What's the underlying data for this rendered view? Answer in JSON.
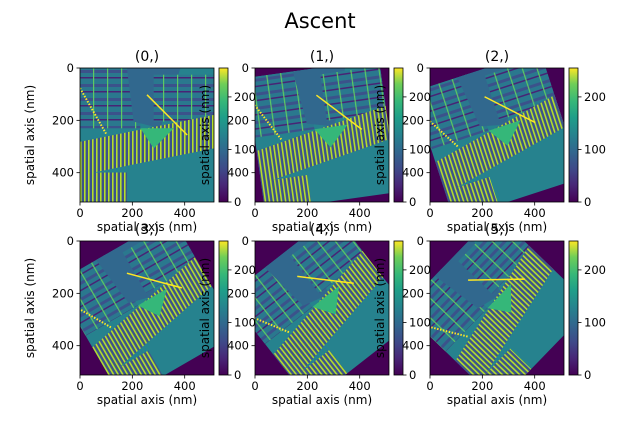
{
  "figure": {
    "suptitle": "Ascent"
  },
  "chart_data": {
    "type": "heatmap",
    "colormap": "viridis",
    "xlabel": "spatial axis (nm)",
    "ylabel": "spatial axis (nm)",
    "xticks": [
      0,
      200,
      400
    ],
    "yticks": [
      0,
      200,
      400
    ],
    "xlim": [
      0,
      512
    ],
    "ylim": [
      512,
      0
    ],
    "colorbar": {
      "ticks": [
        0,
        100,
        200
      ],
      "range": [
        0,
        255
      ]
    },
    "panels": [
      {
        "title": "(0,)",
        "rotation_deg": 0
      },
      {
        "title": "(1,)",
        "rotation_deg": 8
      },
      {
        "title": "(2,)",
        "rotation_deg": 18
      },
      {
        "title": "(3,)",
        "rotation_deg": 30
      },
      {
        "title": "(4,)",
        "rotation_deg": 38
      },
      {
        "title": "(5,)",
        "rotation_deg": 46
      }
    ]
  }
}
